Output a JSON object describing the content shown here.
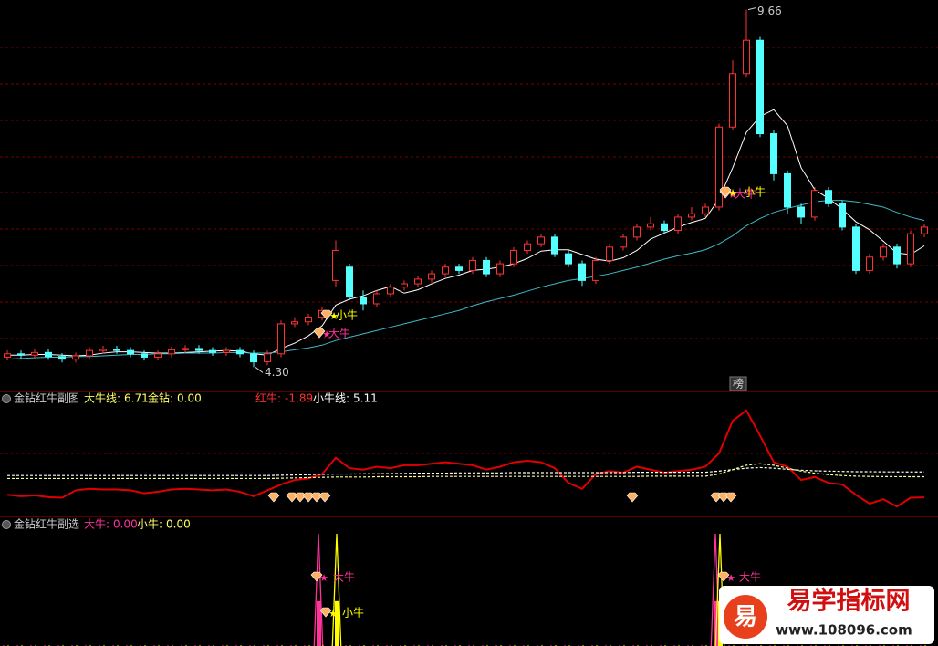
{
  "chart_data": [
    {
      "type": "candlestick",
      "title": null,
      "ylim": [
        3.95,
        9.75
      ],
      "open": [
        4.45,
        4.5,
        4.48,
        4.52,
        4.46,
        4.42,
        4.47,
        4.55,
        4.57,
        4.55,
        4.5,
        4.45,
        4.5,
        4.56,
        4.58,
        4.55,
        4.52,
        4.55,
        4.5,
        4.38,
        4.5,
        4.95,
        4.98,
        5.05,
        5.6,
        5.8,
        5.35,
        5.25,
        5.4,
        5.5,
        5.55,
        5.62,
        5.7,
        5.8,
        5.75,
        5.9,
        5.7,
        5.85,
        6.05,
        6.15,
        6.25,
        6.0,
        5.85,
        5.6,
        5.9,
        6.1,
        6.25,
        6.4,
        6.45,
        6.35,
        6.55,
        6.6,
        6.7,
        7.9,
        8.7,
        9.2,
        7.8,
        7.2,
        6.7,
        6.55,
        6.95,
        6.75,
        6.4,
        5.75,
        5.95,
        6.1,
        5.85,
        6.3
      ],
      "close": [
        4.5,
        4.48,
        4.52,
        4.46,
        4.42,
        4.47,
        4.55,
        4.57,
        4.55,
        4.5,
        4.45,
        4.5,
        4.56,
        4.58,
        4.55,
        4.52,
        4.55,
        4.5,
        4.38,
        4.5,
        4.95,
        4.98,
        5.05,
        5.15,
        6.05,
        5.35,
        5.25,
        5.4,
        5.5,
        5.55,
        5.62,
        5.7,
        5.8,
        5.75,
        5.9,
        5.7,
        5.85,
        6.05,
        6.15,
        6.25,
        6.0,
        5.85,
        5.6,
        5.9,
        6.1,
        6.25,
        6.4,
        6.45,
        6.35,
        6.55,
        6.6,
        6.7,
        7.9,
        8.7,
        9.2,
        7.8,
        7.2,
        6.7,
        6.55,
        6.95,
        6.75,
        6.4,
        5.75,
        5.95,
        6.1,
        5.85,
        6.3,
        6.4
      ],
      "high": [
        4.55,
        4.55,
        4.57,
        4.57,
        4.51,
        4.52,
        4.6,
        4.62,
        4.62,
        4.6,
        4.55,
        4.55,
        4.61,
        4.63,
        4.63,
        4.6,
        4.6,
        4.6,
        4.55,
        4.55,
        5.0,
        5.05,
        5.1,
        5.2,
        6.2,
        5.85,
        5.45,
        5.45,
        5.55,
        5.6,
        5.67,
        5.75,
        5.85,
        5.85,
        5.95,
        5.95,
        5.9,
        6.1,
        6.2,
        6.3,
        6.3,
        6.05,
        5.9,
        5.95,
        6.15,
        6.3,
        6.45,
        6.55,
        6.5,
        6.6,
        6.7,
        6.75,
        7.95,
        8.9,
        9.66,
        9.25,
        7.85,
        7.25,
        6.75,
        7.0,
        7.0,
        6.8,
        6.45,
        6.0,
        6.15,
        6.15,
        6.35,
        6.45
      ],
      "low": [
        4.4,
        4.43,
        4.43,
        4.41,
        4.37,
        4.37,
        4.42,
        4.5,
        4.5,
        4.45,
        4.4,
        4.4,
        4.45,
        4.51,
        4.5,
        4.47,
        4.47,
        4.45,
        4.3,
        4.33,
        4.45,
        4.9,
        4.93,
        5.0,
        5.5,
        5.3,
        5.15,
        5.2,
        5.35,
        5.45,
        5.5,
        5.57,
        5.65,
        5.7,
        5.7,
        5.65,
        5.65,
        5.8,
        6.0,
        6.1,
        5.95,
        5.8,
        5.52,
        5.55,
        5.85,
        6.05,
        6.2,
        6.35,
        6.3,
        6.3,
        6.5,
        6.55,
        6.65,
        7.85,
        8.65,
        7.75,
        7.1,
        6.6,
        6.45,
        6.5,
        6.7,
        6.35,
        5.7,
        5.7,
        5.9,
        5.78,
        5.8,
        6.25
      ],
      "series": [
        {
          "color": "#ffffff",
          "values": [
            4.48,
            4.48,
            4.49,
            4.49,
            4.48,
            4.47,
            4.48,
            4.51,
            4.53,
            4.53,
            4.52,
            4.51,
            4.51,
            4.52,
            4.53,
            4.54,
            4.55,
            4.54,
            4.5,
            4.48,
            4.58,
            4.66,
            4.77,
            4.92,
            5.23,
            5.32,
            5.37,
            5.45,
            5.51,
            5.41,
            5.46,
            5.55,
            5.63,
            5.68,
            5.75,
            5.77,
            5.8,
            5.85,
            5.93,
            6.04,
            6.06,
            6.06,
            5.99,
            5.92,
            5.89,
            5.94,
            6.05,
            6.22,
            6.31,
            6.4,
            6.47,
            6.53,
            6.82,
            7.29,
            7.82,
            8.06,
            8.16,
            7.92,
            7.29,
            6.96,
            6.83,
            6.67,
            6.48,
            6.36,
            6.19,
            6.01,
            5.99,
            6.12
          ]
        },
        {
          "color": "#3fb8c8",
          "values": [
            4.42,
            4.43,
            4.44,
            4.45,
            4.45,
            4.46,
            4.46,
            4.47,
            4.48,
            4.49,
            4.49,
            4.5,
            4.5,
            4.51,
            4.51,
            4.51,
            4.52,
            4.52,
            4.51,
            4.51,
            4.53,
            4.56,
            4.59,
            4.63,
            4.7,
            4.75,
            4.8,
            4.85,
            4.9,
            4.95,
            5.0,
            5.05,
            5.1,
            5.15,
            5.22,
            5.28,
            5.33,
            5.38,
            5.44,
            5.5,
            5.55,
            5.6,
            5.63,
            5.66,
            5.7,
            5.75,
            5.8,
            5.86,
            5.92,
            5.97,
            6.01,
            6.06,
            6.15,
            6.27,
            6.42,
            6.53,
            6.62,
            6.68,
            6.73,
            6.78,
            6.8,
            6.8,
            6.78,
            6.74,
            6.7,
            6.62,
            6.55,
            6.5
          ]
        }
      ],
      "price_labels": [
        {
          "value": 9.66,
          "label": "9.66"
        },
        {
          "value": 4.3,
          "label": "4.30"
        }
      ],
      "markers": [
        {
          "label": "小牛",
          "color": "#ffff00"
        },
        {
          "label": "大牛",
          "color": "#ff3399"
        },
        {
          "label": "大牛",
          "color": "#ff3399"
        },
        {
          "label": "小牛",
          "color": "#ffff00"
        }
      ],
      "button": "榜"
    },
    {
      "type": "line",
      "title": "金钻红牛副图",
      "ylim": [
        -8,
        33
      ],
      "fields": [
        {
          "name": "大牛线:",
          "value": 6.71,
          "color": "#ffff66"
        },
        {
          "name": "金钻:",
          "value": 0,
          "value_label": "0.00",
          "color": "#ffff66"
        },
        {
          "name": "红牛:",
          "value": -1.89,
          "color": "#ff3030"
        },
        {
          "name": "小牛线:",
          "value": 5.11,
          "color": "#ffffff"
        }
      ],
      "series": [
        {
          "name": "红牛",
          "color": "#e00000",
          "values": [
            -1.0,
            -1.5,
            -1.2,
            -1.8,
            -2.0,
            0.5,
            1.0,
            0.8,
            0.8,
            0.5,
            -0.5,
            0,
            0.8,
            1.0,
            0.8,
            0.5,
            0.8,
            0,
            -1.5,
            0.5,
            2.5,
            4.0,
            4.5,
            6.0,
            11.5,
            8.0,
            7.5,
            8.5,
            8.0,
            9.0,
            9.0,
            9.5,
            10.0,
            9.5,
            9.0,
            7.5,
            8.5,
            10.0,
            10.5,
            10.0,
            8.0,
            3.0,
            1.0,
            6.0,
            7.0,
            6.5,
            8.5,
            7.5,
            6.5,
            7.0,
            7.5,
            8.5,
            13.0,
            24.0,
            27.5,
            19.0,
            10.0,
            8.5,
            4.0,
            5.0,
            3.0,
            2.5,
            -1.0,
            -4.0,
            -2.5,
            -5.0,
            -2.0,
            -1.89
          ]
        },
        {
          "name": "大牛线",
          "color": "#ffffff",
          "values": [
            5.5,
            5.5,
            5.5,
            5.5,
            5.5,
            5.5,
            5.5,
            5.5,
            5.5,
            5.5,
            5.5,
            5.5,
            5.5,
            5.5,
            5.5,
            5.5,
            5.5,
            5.5,
            5.5,
            5.5,
            5.6,
            5.7,
            5.8,
            5.9,
            6.0,
            6.0,
            6.1,
            6.1,
            6.2,
            6.2,
            6.3,
            6.3,
            6.3,
            6.4,
            6.4,
            6.4,
            6.4,
            6.5,
            6.5,
            6.5,
            6.5,
            6.5,
            6.5,
            6.5,
            6.5,
            6.5,
            6.6,
            6.6,
            6.6,
            6.6,
            6.6,
            6.6,
            7.0,
            7.5,
            8.0,
            8.2,
            8.0,
            7.6,
            7.3,
            7.1,
            7.0,
            6.9,
            6.8,
            6.8,
            6.75,
            6.73,
            6.72,
            6.71
          ]
        },
        {
          "name": "小牛线",
          "color": "#ffff99",
          "values": [
            4.5,
            4.5,
            4.5,
            4.5,
            4.5,
            4.5,
            4.5,
            4.5,
            4.5,
            4.5,
            4.5,
            4.5,
            4.5,
            4.5,
            4.5,
            4.5,
            4.5,
            4.5,
            4.5,
            4.5,
            4.6,
            4.7,
            4.8,
            4.9,
            5.0,
            5.0,
            5.0,
            5.1,
            5.1,
            5.1,
            5.1,
            5.2,
            5.2,
            5.2,
            5.2,
            5.2,
            5.2,
            5.2,
            5.2,
            5.2,
            5.2,
            5.2,
            5.2,
            5.2,
            5.2,
            5.2,
            5.2,
            5.3,
            5.3,
            5.3,
            5.3,
            5.3,
            6.0,
            7.5,
            9.0,
            9.5,
            9.0,
            8.0,
            7.0,
            6.3,
            5.8,
            5.5,
            5.3,
            5.2,
            5.15,
            5.12,
            5.11,
            5.11
          ]
        }
      ]
    },
    {
      "type": "spike",
      "title": "金钻红牛副选",
      "ylim": [
        0,
        1
      ],
      "fields": [
        {
          "name": "大牛:",
          "value": 0,
          "value_label": "0.00",
          "color": "#ff3399"
        },
        {
          "name": "小牛:",
          "value": 0,
          "value_label": "0.00",
          "color": "#ffff66"
        }
      ],
      "series": [
        {
          "name": "大牛",
          "color": "#ff3399",
          "values": [
            0,
            0,
            0,
            0,
            0,
            0,
            0,
            0,
            0,
            0,
            0,
            0,
            0,
            0,
            0,
            0,
            0,
            0,
            0,
            0,
            0,
            0,
            0,
            1,
            0,
            0,
            0,
            0,
            0,
            0,
            0,
            0,
            0,
            0,
            0,
            0,
            0,
            0,
            0,
            0,
            0,
            0,
            0,
            0,
            0,
            0,
            0,
            0,
            0,
            0,
            0,
            0,
            1,
            0,
            0,
            0,
            0,
            0,
            0,
            0,
            0,
            0,
            0,
            0,
            0,
            0,
            0,
            0
          ]
        },
        {
          "name": "小牛",
          "color": "#ffff00",
          "values": [
            0,
            0,
            0,
            0,
            0,
            0,
            0,
            0,
            0,
            0,
            0,
            0,
            0,
            0,
            0,
            0,
            0,
            0,
            0,
            0,
            0,
            0,
            0,
            0,
            1,
            0,
            0,
            0,
            0,
            0,
            0,
            0,
            0,
            0,
            0,
            0,
            0,
            0,
            0,
            0,
            0,
            0,
            0,
            0,
            0,
            0,
            0,
            0,
            0,
            0,
            0,
            0,
            1,
            0,
            0,
            0,
            0,
            0,
            0,
            0,
            0,
            0,
            0,
            0,
            0,
            0,
            0,
            0
          ]
        }
      ],
      "markers": [
        {
          "label": "大牛",
          "color": "#ff3399"
        },
        {
          "label": "小牛",
          "color": "#ffff00"
        },
        {
          "label": "大牛",
          "color": "#ff3399"
        }
      ]
    }
  ],
  "watermark": {
    "logo": "易",
    "name": "易学指标网",
    "url": "www.108096.com"
  }
}
